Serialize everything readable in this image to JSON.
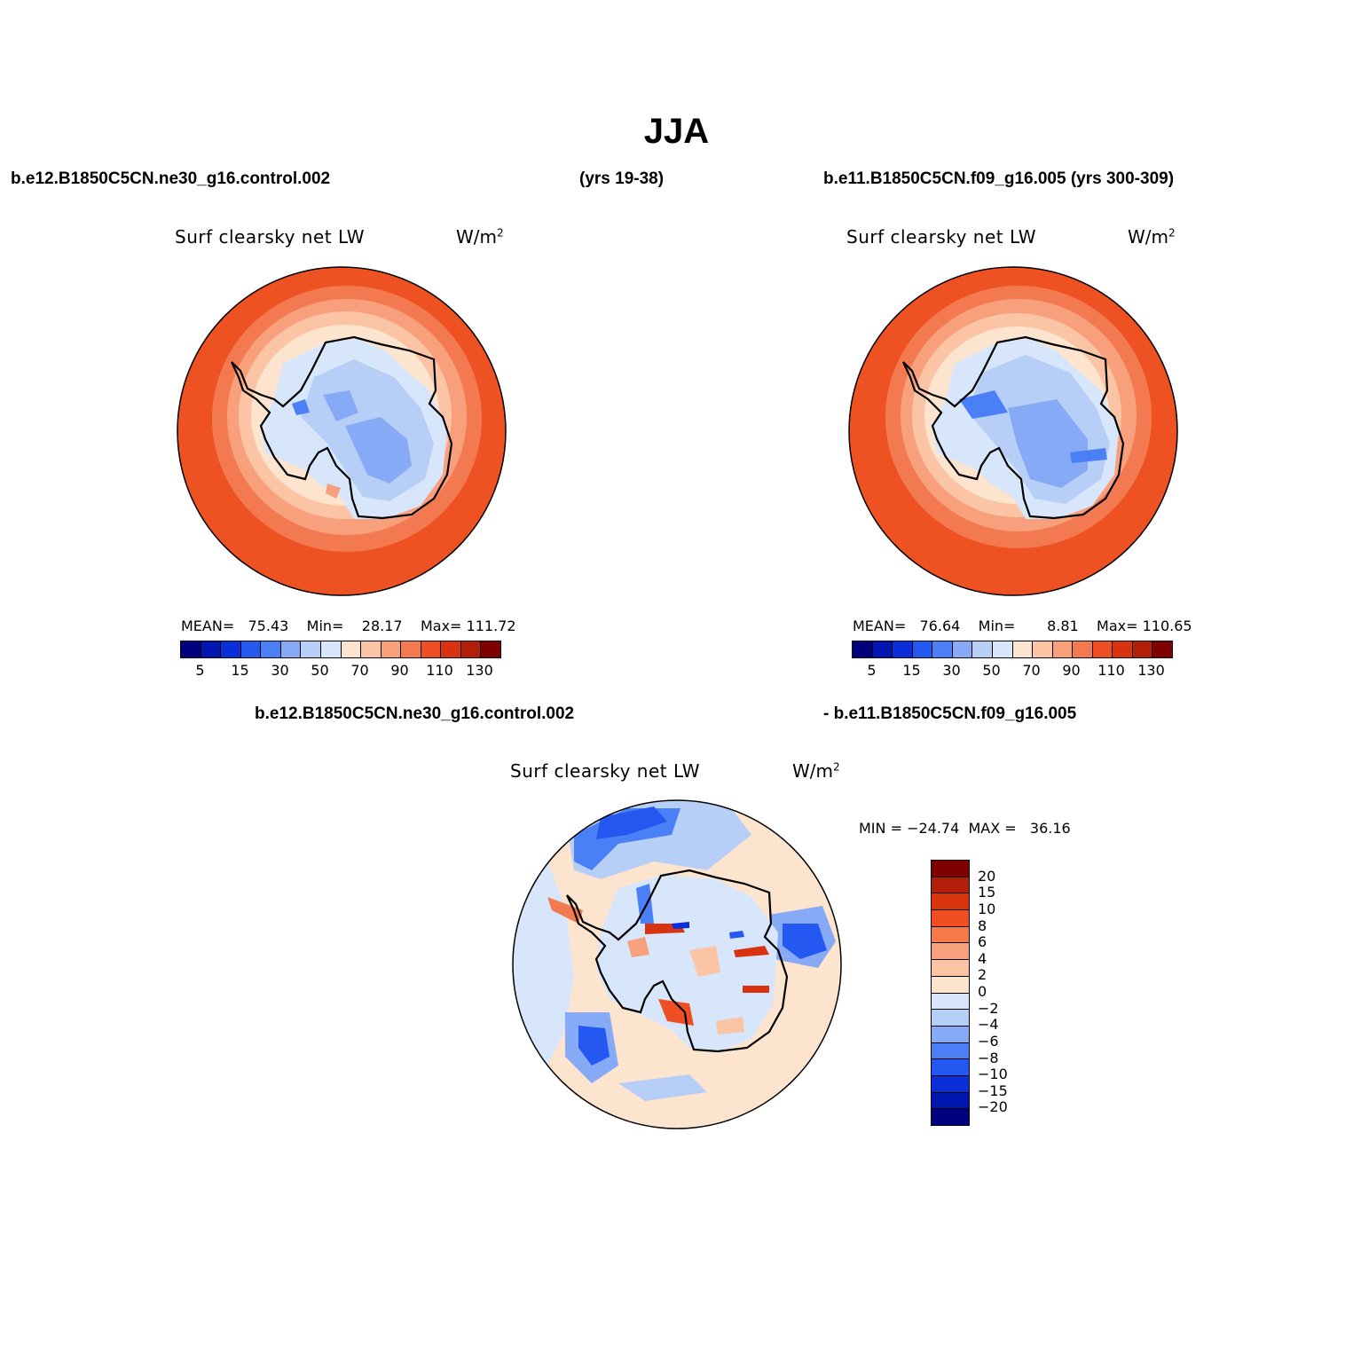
{
  "header": {
    "title": "JJA",
    "case1": "b.e12.B1850C5CN.ne30_g16.control.002",
    "years1": "(yrs 19-38)",
    "case2": "b.e11.B1850C5CN.f09_g16.005 (yrs 300-309)"
  },
  "panel1": {
    "title": "Surf clearsky net LW",
    "units": "W/m",
    "units_sup": "2",
    "mean_label": "MEAN=",
    "mean": "75.43",
    "min_label": "Min=",
    "min": "28.17",
    "max_label": "Max=",
    "max": "111.72"
  },
  "panel2": {
    "title": "Surf clearsky net LW",
    "units": "W/m",
    "units_sup": "2",
    "mean_label": "MEAN=",
    "mean": "76.64",
    "min_label": "Min=",
    "min": "8.81",
    "max_label": "Max=",
    "max": "110.65"
  },
  "abs_colorbar": {
    "colors": [
      "#00007f",
      "#0016b0",
      "#0a2fd9",
      "#2458f0",
      "#4a7ff5",
      "#86aaf5",
      "#b7cff6",
      "#d7e6fb",
      "#fde4cf",
      "#fbc4a5",
      "#f7a07a",
      "#f37a50",
      "#ef4e22",
      "#d93210",
      "#b3200a",
      "#7f0000"
    ],
    "labels": [
      "5",
      "15",
      "30",
      "50",
      "70",
      "90",
      "110",
      "130"
    ]
  },
  "diff": {
    "case_a": "b.e12.B1850C5CN.ne30_g16.control.002",
    "case_b": "- b.e11.B1850C5CN.f09_g16.005",
    "title": "Surf clearsky net LW",
    "units": "W/m",
    "units_sup": "2",
    "minmax": "MIN = −24.74  MAX =   36.16"
  },
  "diff_colorbar": {
    "colors": [
      "#7f0000",
      "#b3200a",
      "#d9340e",
      "#ef4e22",
      "#f57a4a",
      "#f8a07c",
      "#fbc4a5",
      "#fde4cf",
      "#d7e6fb",
      "#b7cff6",
      "#86aaf5",
      "#4a7ff5",
      "#2458f0",
      "#0a2fd9",
      "#0016b0",
      "#00007f"
    ],
    "labels": [
      "20",
      "15",
      "10",
      "8",
      "6",
      "4",
      "2",
      "0",
      "−2",
      "−4",
      "−6",
      "−8",
      "−10",
      "−15",
      "−20"
    ]
  }
}
